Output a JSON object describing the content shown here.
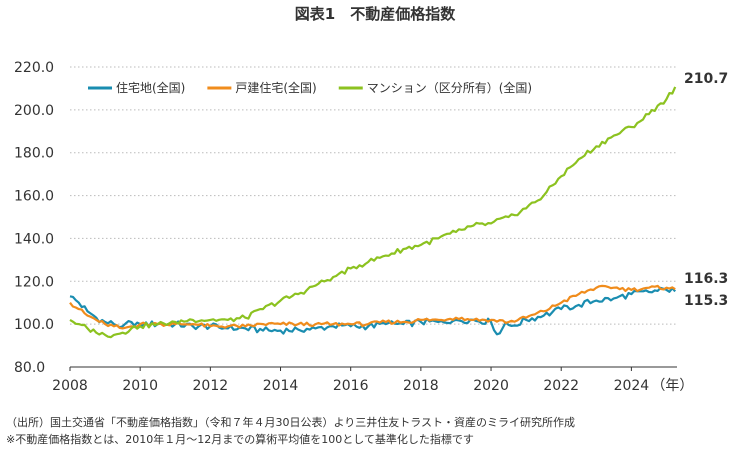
{
  "chart_data": {
    "type": "line",
    "title": "図表1　不動産価格指数",
    "ylim": [
      80,
      220
    ],
    "yticks": [
      "220.0",
      "200.0",
      "180.0",
      "160.0",
      "140.0",
      "120.0",
      "100.0",
      "80.0"
    ],
    "xlim": [
      2008.0,
      2025.3
    ],
    "xticks": [
      "2008",
      "2010",
      "2012",
      "2014",
      "2016",
      "2018",
      "2020",
      "2022",
      "2024"
    ],
    "x_unit_label": "（年）",
    "grid": "horizontal dotted",
    "legend_position": "top-left",
    "series": [
      {
        "name": "住宅地(全国)",
        "color": "#1a8db0",
        "end_label": "115.3",
        "x": [
          2008.0,
          2008.25,
          2008.5,
          2008.75,
          2009.0,
          2009.25,
          2009.5,
          2009.75,
          2010.0,
          2010.5,
          2011.0,
          2011.5,
          2012.0,
          2012.5,
          2013.0,
          2013.5,
          2014.0,
          2014.5,
          2015.0,
          2015.5,
          2016.0,
          2016.5,
          2017.0,
          2017.5,
          2018.0,
          2018.5,
          2019.0,
          2019.5,
          2020.0,
          2020.2,
          2020.4,
          2020.6,
          2021.0,
          2021.5,
          2022.0,
          2022.5,
          2023.0,
          2023.5,
          2024.0,
          2024.5,
          2025.0,
          2025.25
        ],
        "values": [
          113,
          110,
          106,
          103,
          101,
          100,
          99,
          101,
          100,
          100,
          100,
          99,
          99,
          98,
          98,
          97,
          97,
          97.5,
          98,
          99,
          99,
          99,
          100,
          100,
          101,
          101,
          102,
          102,
          101,
          94,
          101,
          99,
          102,
          104,
          107,
          109,
          111,
          112,
          114,
          115,
          116,
          115.3
        ]
      },
      {
        "name": "戸建住宅(全国)",
        "color": "#f08c1c",
        "end_label": "116.3",
        "x": [
          2008.0,
          2008.25,
          2008.5,
          2008.75,
          2009.0,
          2009.25,
          2009.5,
          2009.75,
          2010.0,
          2010.5,
          2011.0,
          2011.5,
          2012.0,
          2012.5,
          2013.0,
          2013.5,
          2014.0,
          2014.5,
          2015.0,
          2015.5,
          2016.0,
          2016.5,
          2017.0,
          2017.5,
          2018.0,
          2018.5,
          2019.0,
          2019.5,
          2020.0,
          2020.5,
          2021.0,
          2021.5,
          2022.0,
          2022.5,
          2023.0,
          2023.5,
          2024.0,
          2024.5,
          2025.0,
          2025.25
        ],
        "values": [
          110,
          107,
          104,
          102,
          100,
          99,
          98,
          99,
          100,
          100,
          100,
          100,
          99,
          99,
          99,
          100,
          100,
          100,
          100,
          100,
          100,
          100,
          101,
          101,
          102,
          102,
          103,
          102,
          102,
          101,
          103,
          106,
          110,
          114,
          117,
          117,
          116,
          117,
          117,
          116.3
        ]
      },
      {
        "name": "マンション（区分所有）(全国)",
        "color": "#8cc220",
        "end_label": "210.7",
        "x": [
          2008.0,
          2008.25,
          2008.5,
          2008.75,
          2009.0,
          2009.25,
          2009.5,
          2009.75,
          2010.0,
          2010.5,
          2011.0,
          2011.5,
          2012.0,
          2012.5,
          2013.0,
          2013.5,
          2014.0,
          2014.5,
          2015.0,
          2015.5,
          2016.0,
          2016.5,
          2017.0,
          2017.5,
          2018.0,
          2018.5,
          2019.0,
          2019.5,
          2020.0,
          2020.5,
          2021.0,
          2021.5,
          2022.0,
          2022.5,
          2023.0,
          2023.5,
          2024.0,
          2024.5,
          2024.75,
          2025.0,
          2025.25
        ],
        "values": [
          102,
          100,
          98,
          96,
          95,
          95,
          96,
          98,
          99,
          100,
          101,
          102,
          102,
          102,
          103,
          107,
          111,
          114,
          118,
          122,
          126,
          129,
          132,
          135,
          137,
          140,
          143,
          146,
          147,
          150,
          154,
          160,
          169,
          177,
          183,
          188,
          192,
          198,
          202,
          205,
          210.7
        ]
      }
    ]
  },
  "footnotes": {
    "source": "（出所）国土交通省「不動産価格指数」（令和７年４月30日公表）より三井住友トラスト・資産のミライ研究所作成",
    "note": "※不動産価格指数とは、2010年１月～12月までの算術平均値を100として基準化した指標です"
  }
}
